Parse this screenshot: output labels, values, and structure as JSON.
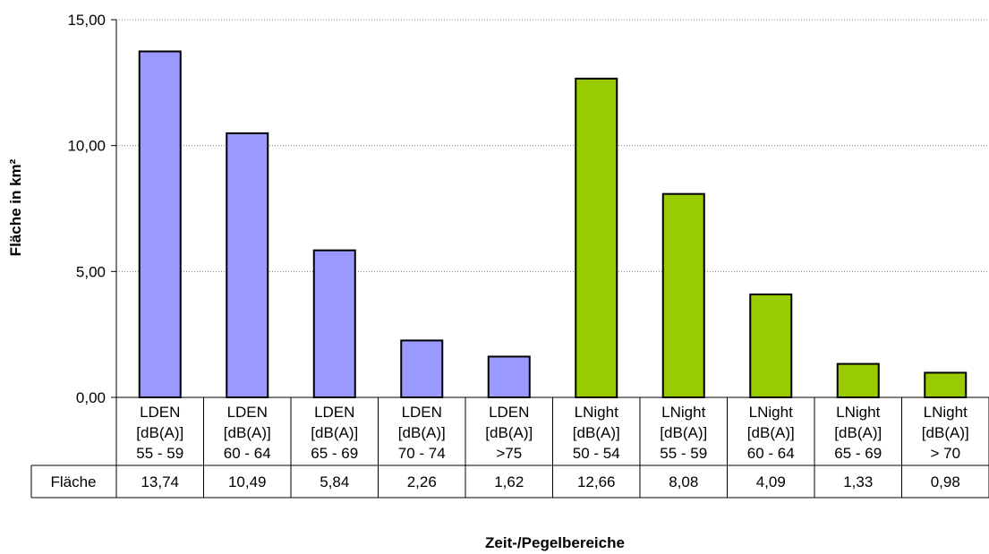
{
  "chart_data": {
    "type": "bar",
    "title": "",
    "xlabel": "Zeit-/Pegelbereiche",
    "ylabel": "Fläche in km²",
    "ylim": [
      0,
      15
    ],
    "yticks": [
      "0,00",
      "5,00",
      "10,00",
      "15,00"
    ],
    "ytick_values": [
      0,
      5,
      10,
      15
    ],
    "grid": true,
    "categories": [
      [
        "LDEN",
        "[dB(A)]",
        "55 - 59"
      ],
      [
        "LDEN",
        "[dB(A)]",
        "60 - 64"
      ],
      [
        "LDEN",
        "[dB(A)]",
        "65 - 69"
      ],
      [
        "LDEN",
        "[dB(A)]",
        "70 - 74"
      ],
      [
        "LDEN",
        "[dB(A)]",
        ">75"
      ],
      [
        "LNight",
        "[dB(A)]",
        "50 - 54"
      ],
      [
        "LNight",
        "[dB(A)]",
        "55 - 59"
      ],
      [
        "LNight",
        "[dB(A)]",
        "60 - 64"
      ],
      [
        "LNight",
        "[dB(A)]",
        "65 - 69"
      ],
      [
        "LNight",
        "[dB(A)]",
        "> 70"
      ]
    ],
    "series": [
      {
        "name": "Fläche",
        "values": [
          13.74,
          10.49,
          5.84,
          2.26,
          1.62,
          12.66,
          8.08,
          4.09,
          1.33,
          0.98
        ]
      }
    ],
    "table_labels": [
      "13,74",
      "10,49",
      "5,84",
      "2,26",
      "1,62",
      "12,66",
      "8,08",
      "4,09",
      "1,33",
      "0,98"
    ],
    "bar_colors": [
      "#9999ff",
      "#9999ff",
      "#9999ff",
      "#9999ff",
      "#9999ff",
      "#99cc00",
      "#99cc00",
      "#99cc00",
      "#99cc00",
      "#99cc00"
    ]
  }
}
